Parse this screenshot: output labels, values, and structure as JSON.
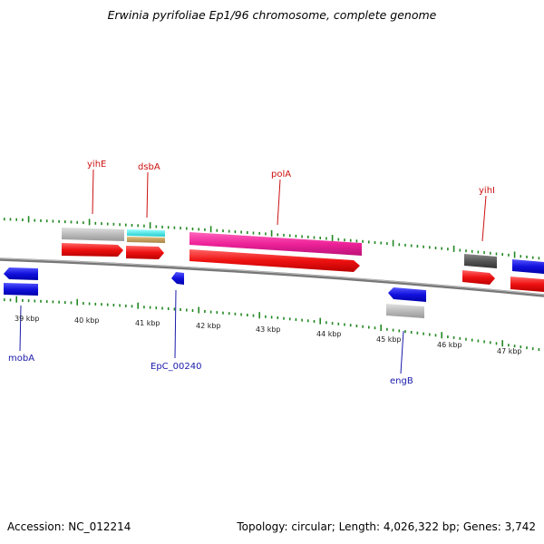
{
  "title": "Erwinia pyrifoliae Ep1/96 chromosome, complete genome",
  "footer": {
    "accession": "Accession: NC_012214",
    "summary": "Topology: circular; Length: 4,026,322 bp; Genes: 3,742"
  },
  "colors": {
    "forward_cds": "#ee1111",
    "reverse_cds": "#1111dd",
    "rna_gray": "#bbbbbb",
    "dark_gray": "#555555",
    "pink": "#ee2299",
    "cyan": "#22dddd",
    "tan": "#c8a060",
    "scale_tick": "#228822",
    "label_top": "#cc1111",
    "label_bottom": "#1a1aaa",
    "backbone": "#777777"
  },
  "scale": {
    "labels": [
      "39 kbp",
      "40 kbp",
      "41 kbp",
      "42 kbp",
      "43 kbp",
      "44 kbp",
      "45 kbp",
      "46 kbp",
      "47 kbp"
    ]
  },
  "top_labels": [
    "yihE",
    "dsbA",
    "polA",
    "yihI"
  ],
  "bottom_labels": [
    "mobA",
    "EpC_00240",
    "engB"
  ]
}
